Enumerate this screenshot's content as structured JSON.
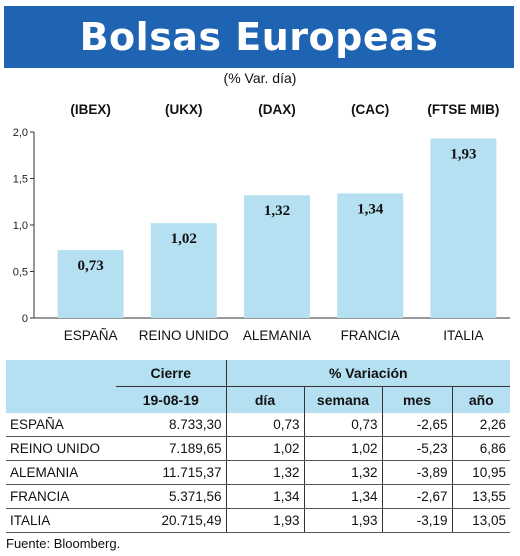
{
  "title": "Bolsas Europeas",
  "subtitle": "(% Var. día)",
  "chart_data": {
    "type": "bar",
    "categories": [
      "ESPAÑA",
      "REINO UNIDO",
      "ALEMANIA",
      "FRANCIA",
      "ITALIA"
    ],
    "index_labels": [
      "(IBEX)",
      "(UKX)",
      "(DAX)",
      "(CAC)",
      "(FTSE MIB)"
    ],
    "values": [
      0.73,
      1.02,
      1.32,
      1.34,
      1.93
    ],
    "value_labels": [
      "0,73",
      "1,02",
      "1,32",
      "1,34",
      "1,93"
    ],
    "ylim": [
      0,
      2
    ],
    "yticks": [
      0,
      0.5,
      1,
      1.5,
      2
    ],
    "ytick_labels": [
      "0",
      "0,5",
      "1,0",
      "1,5",
      "2,0"
    ],
    "bar_color": "#b5e0f2",
    "grid": false
  },
  "table": {
    "header_cierre": "Cierre",
    "header_variacion": "% Variación",
    "header_date": "19-08-19",
    "col_dia": "día",
    "col_semana": "semana",
    "col_mes": "mes",
    "col_ano": "año",
    "rows": [
      {
        "country": "ESPAÑA",
        "cierre": "8.733,30",
        "dia": "0,73",
        "semana": "0,73",
        "mes": "-2,65",
        "ano": "2,26"
      },
      {
        "country": "REINO UNIDO",
        "cierre": "7.189,65",
        "dia": "1,02",
        "semana": "1,02",
        "mes": "-5,23",
        "ano": "6,86"
      },
      {
        "country": "ALEMANIA",
        "cierre": "11.715,37",
        "dia": "1,32",
        "semana": "1,32",
        "mes": "-3,89",
        "ano": "10,95"
      },
      {
        "country": "FRANCIA",
        "cierre": "5.371,56",
        "dia": "1,34",
        "semana": "1,34",
        "mes": "-2,67",
        "ano": "13,55"
      },
      {
        "country": "ITALIA",
        "cierre": "20.715,49",
        "dia": "1,93",
        "semana": "1,93",
        "mes": "-3,19",
        "ano": "13,05"
      }
    ]
  },
  "source": "Fuente: Bloomberg.",
  "colors": {
    "title_bg": "#1f63b3",
    "header_bg": "#b5e0f2"
  }
}
